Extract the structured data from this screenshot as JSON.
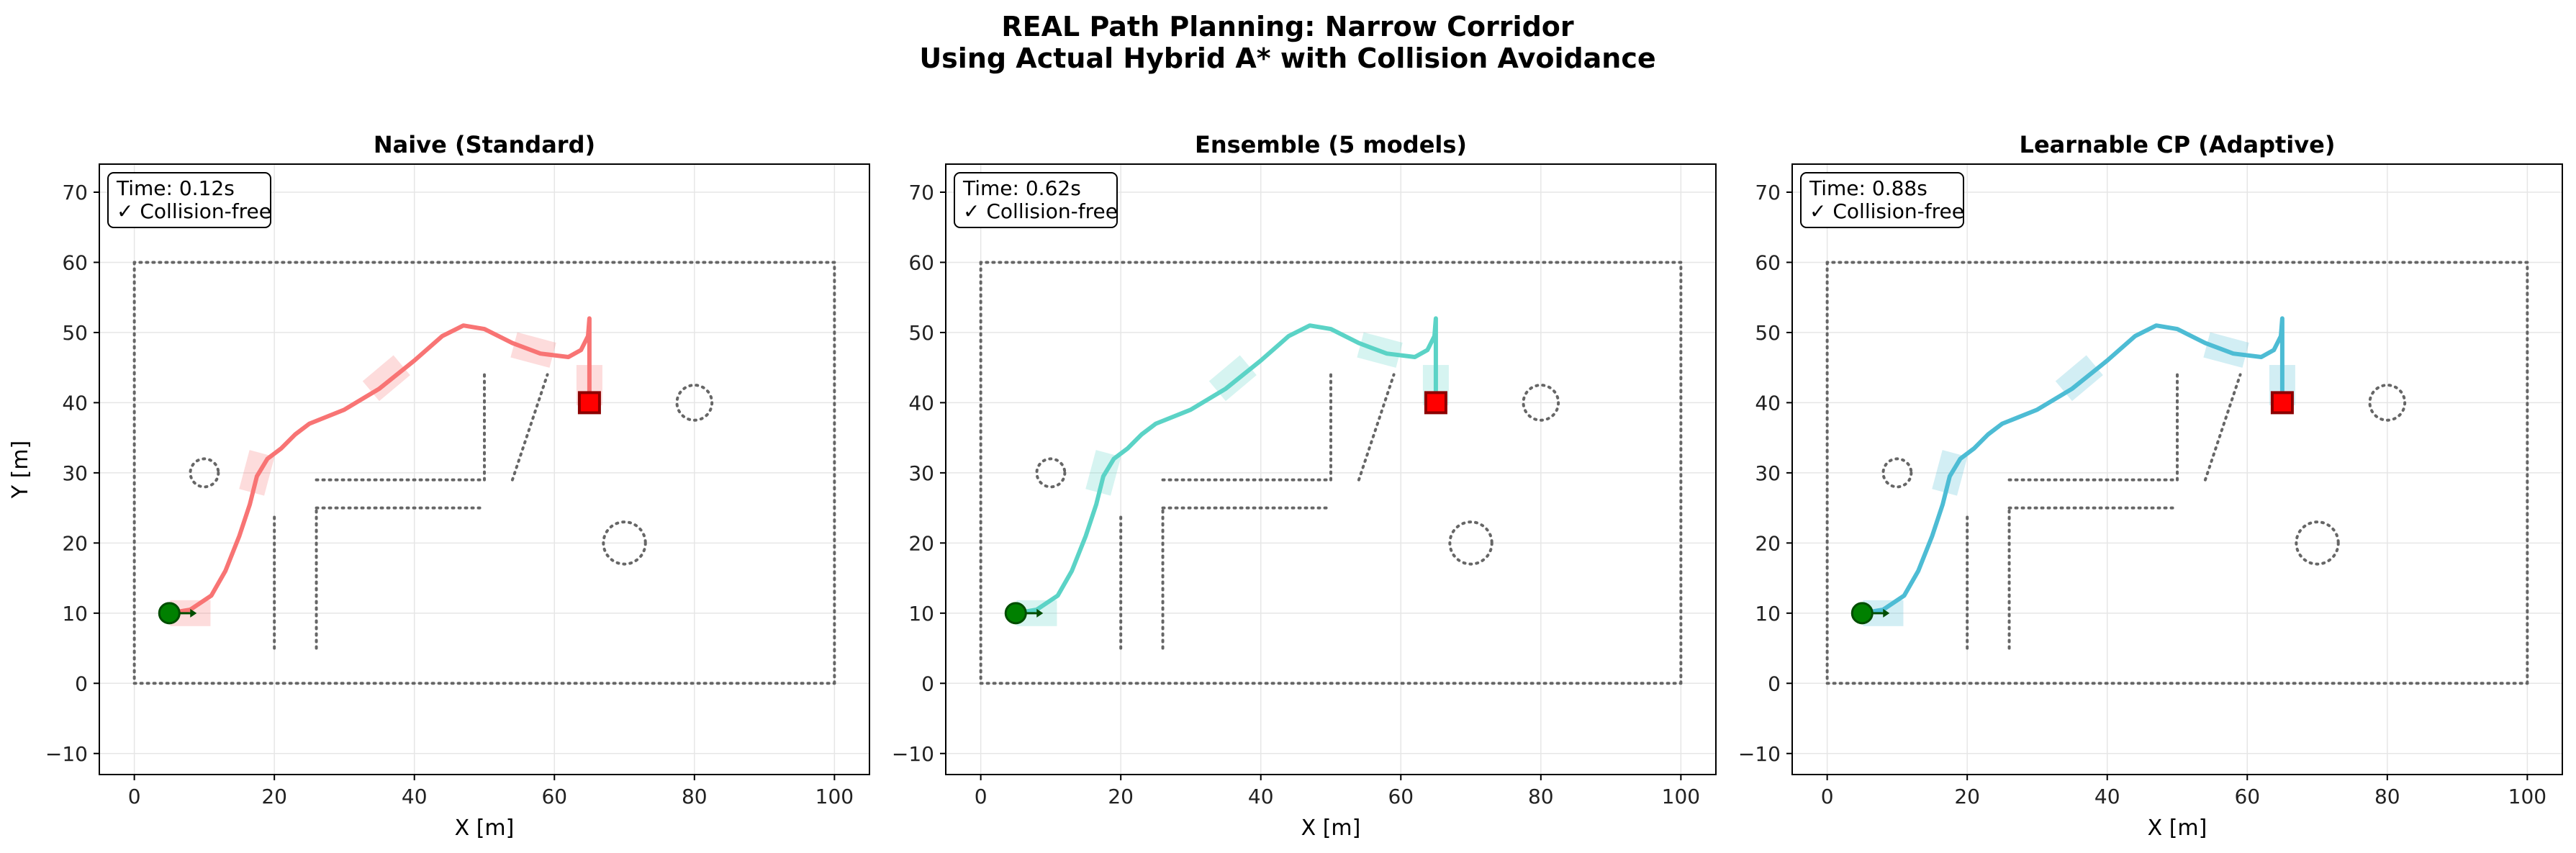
{
  "figure": {
    "title_line1": "REAL Path Planning: Narrow Corridor",
    "title_line2": "Using Actual Hybrid A* with Collision Avoidance"
  },
  "chart_data": [
    {
      "type": "line",
      "title": "Naive (Standard)",
      "xlabel": "X [m]",
      "ylabel": "Y [m]",
      "xlim": [
        -5,
        105
      ],
      "ylim": [
        -13,
        74
      ],
      "xticks": [
        0,
        20,
        40,
        60,
        80,
        100
      ],
      "yticks": [
        -10,
        0,
        10,
        20,
        30,
        40,
        50,
        60,
        70
      ],
      "grid": true,
      "path_color": "#f87474",
      "info_time": "Time: 0.12s",
      "info_status": "✓ Collision-free",
      "path": [
        [
          5,
          10
        ],
        [
          8,
          10.5
        ],
        [
          11,
          12.5
        ],
        [
          13,
          16
        ],
        [
          15,
          21
        ],
        [
          16.5,
          25.5
        ],
        [
          17.5,
          29.5
        ],
        [
          19,
          32
        ],
        [
          21,
          33.5
        ],
        [
          23,
          35.5
        ],
        [
          25,
          37
        ],
        [
          30,
          39
        ],
        [
          35,
          42
        ],
        [
          40,
          46
        ],
        [
          44,
          49.5
        ],
        [
          47,
          51
        ],
        [
          50,
          50.5
        ],
        [
          54,
          48.5
        ],
        [
          58,
          47
        ],
        [
          62,
          46.5
        ],
        [
          63.8,
          47.5
        ],
        [
          64.8,
          49.5
        ],
        [
          65,
          52
        ],
        [
          65,
          45
        ],
        [
          65,
          40
        ]
      ]
    },
    {
      "type": "line",
      "title": "Ensemble (5 models)",
      "xlabel": "X [m]",
      "ylabel": "",
      "xlim": [
        -5,
        105
      ],
      "ylim": [
        -13,
        74
      ],
      "xticks": [
        0,
        20,
        40,
        60,
        80,
        100
      ],
      "yticks": [
        -10,
        0,
        10,
        20,
        30,
        40,
        50,
        60,
        70
      ],
      "grid": true,
      "path_color": "#5bd3c6",
      "info_time": "Time: 0.62s",
      "info_status": "✓ Collision-free",
      "path": [
        [
          5,
          10
        ],
        [
          8,
          10.5
        ],
        [
          11,
          12.5
        ],
        [
          13,
          16
        ],
        [
          15,
          21
        ],
        [
          16.5,
          25.5
        ],
        [
          17.5,
          29.5
        ],
        [
          19,
          32
        ],
        [
          21,
          33.5
        ],
        [
          23,
          35.5
        ],
        [
          25,
          37
        ],
        [
          30,
          39
        ],
        [
          35,
          42
        ],
        [
          40,
          46
        ],
        [
          44,
          49.5
        ],
        [
          47,
          51
        ],
        [
          50,
          50.5
        ],
        [
          54,
          48.5
        ],
        [
          58,
          47
        ],
        [
          62,
          46.5
        ],
        [
          63.8,
          47.5
        ],
        [
          64.8,
          49.5
        ],
        [
          65,
          52
        ],
        [
          65,
          45
        ],
        [
          65,
          40
        ]
      ]
    },
    {
      "type": "line",
      "title": "Learnable CP (Adaptive)",
      "xlabel": "X [m]",
      "ylabel": "",
      "xlim": [
        -5,
        105
      ],
      "ylim": [
        -13,
        74
      ],
      "xticks": [
        0,
        20,
        40,
        60,
        80,
        100
      ],
      "yticks": [
        -10,
        0,
        10,
        20,
        30,
        40,
        50,
        60,
        70
      ],
      "grid": true,
      "path_color": "#4dbcd4",
      "info_time": "Time: 0.88s",
      "info_status": "✓ Collision-free",
      "path": [
        [
          5,
          10
        ],
        [
          8,
          10.5
        ],
        [
          11,
          12.5
        ],
        [
          13,
          16
        ],
        [
          15,
          21
        ],
        [
          16.5,
          25.5
        ],
        [
          17.5,
          29.5
        ],
        [
          19,
          32
        ],
        [
          21,
          33.5
        ],
        [
          23,
          35.5
        ],
        [
          25,
          37
        ],
        [
          30,
          39
        ],
        [
          35,
          42
        ],
        [
          40,
          46
        ],
        [
          44,
          49.5
        ],
        [
          47,
          51
        ],
        [
          50,
          50.5
        ],
        [
          54,
          48.5
        ],
        [
          58,
          47
        ],
        [
          62,
          46.5
        ],
        [
          63.8,
          47.5
        ],
        [
          64.8,
          49.5
        ],
        [
          65,
          52
        ],
        [
          65,
          45
        ],
        [
          65,
          40
        ]
      ]
    }
  ],
  "environment": {
    "walls": [
      [
        [
          0,
          0
        ],
        [
          100,
          0
        ]
      ],
      [
        [
          100,
          0
        ],
        [
          100,
          60
        ]
      ],
      [
        [
          100,
          60
        ],
        [
          0,
          60
        ]
      ],
      [
        [
          0,
          60
        ],
        [
          0,
          0
        ]
      ],
      [
        [
          20,
          5
        ],
        [
          20,
          24
        ]
      ],
      [
        [
          26,
          5
        ],
        [
          26,
          25
        ]
      ],
      [
        [
          26,
          25
        ],
        [
          50,
          25
        ]
      ],
      [
        [
          26,
          29
        ],
        [
          50,
          29
        ]
      ],
      [
        [
          50,
          29
        ],
        [
          50,
          44
        ]
      ],
      [
        [
          54,
          29
        ],
        [
          59,
          44
        ]
      ]
    ],
    "circular_obstacles": [
      {
        "x": 10,
        "y": 30,
        "r": 2
      },
      {
        "x": 80,
        "y": 40,
        "r": 2.5
      },
      {
        "x": 70,
        "y": 20,
        "r": 3
      }
    ],
    "uncertainty_regions": [
      {
        "x": 8,
        "y": 10,
        "angle": 0
      },
      {
        "x": 17.5,
        "y": 30,
        "angle": 75
      },
      {
        "x": 36,
        "y": 43.5,
        "angle": 40
      },
      {
        "x": 57,
        "y": 47.5,
        "angle": -15
      },
      {
        "x": 65,
        "y": 42.5,
        "angle": 90
      }
    ],
    "start": {
      "x": 5,
      "y": 10,
      "color": "#008000",
      "edge": "#004d00"
    },
    "goal": {
      "x": 65,
      "y": 40,
      "color": "#ff0000",
      "edge": "#8b0000"
    },
    "wall_color": "#666666"
  }
}
